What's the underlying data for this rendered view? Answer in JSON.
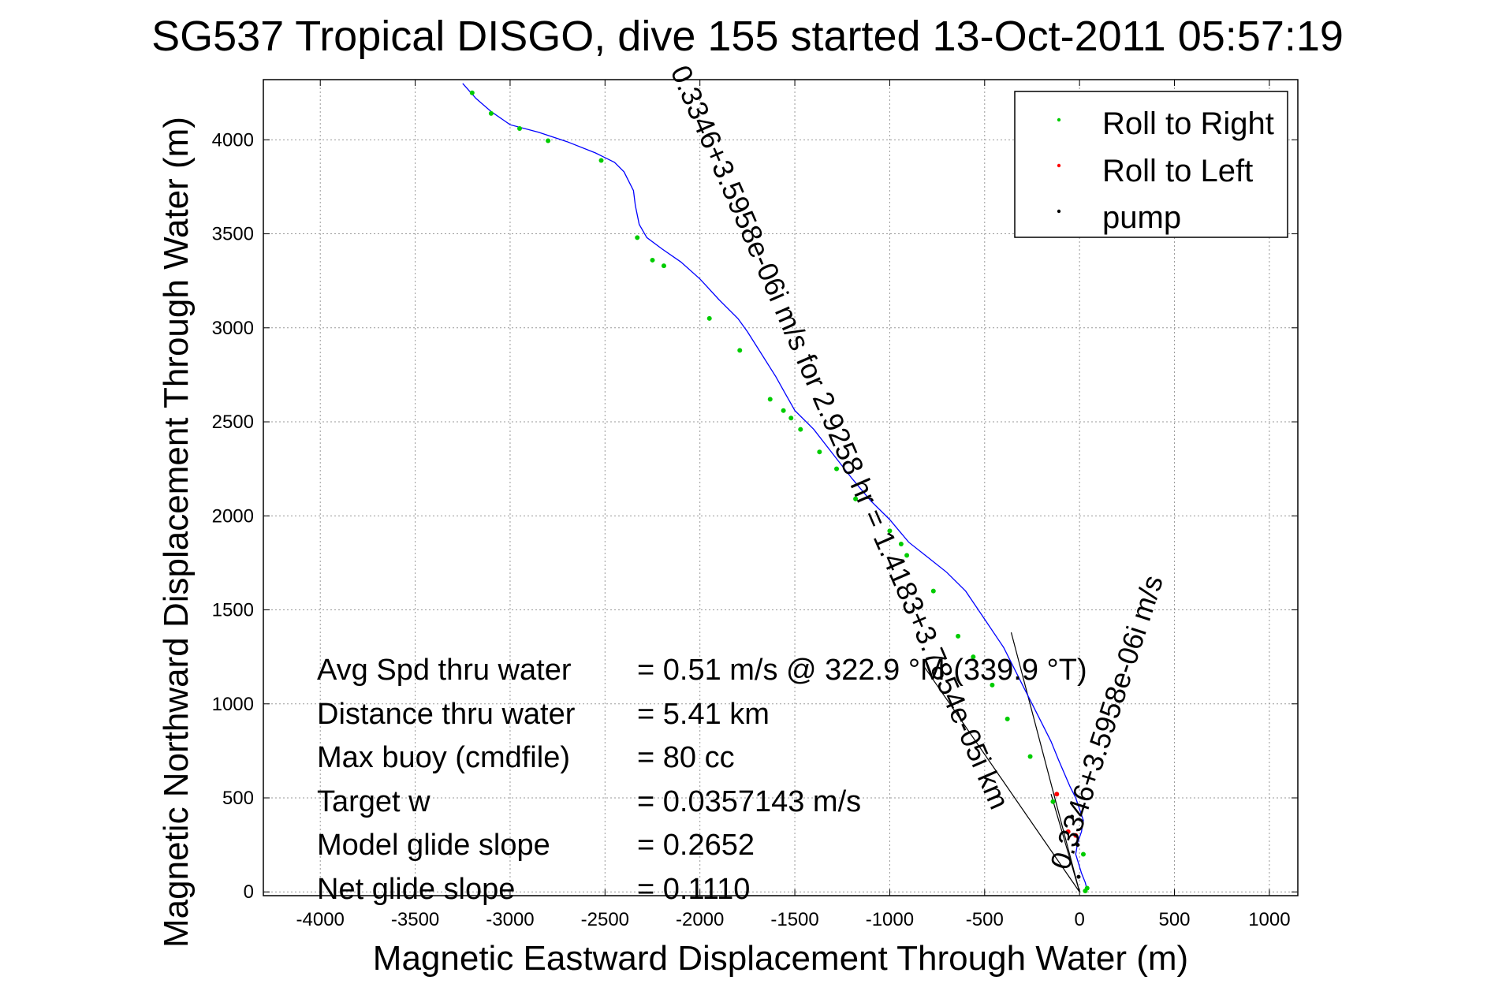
{
  "figure": {
    "title": "SG537 Tropical DISGO, dive 155 started 13-Oct-2011 05:57:19",
    "background": "#ffffff"
  },
  "chart_data": {
    "type": "line",
    "title": "SG537 Tropical DISGO, dive 155 started 13-Oct-2011 05:57:19",
    "xlabel": "Magnetic Eastward Displacement Through Water (m)",
    "ylabel": "Magnetic Northward Displacement Through Water (m)",
    "xlim": [
      -4300,
      1150
    ],
    "ylim": [
      -20,
      4320
    ],
    "x_ticks": [
      -4000,
      -3500,
      -3000,
      -2500,
      -2000,
      -1500,
      -1000,
      -500,
      0,
      500,
      1000
    ],
    "y_ticks": [
      0,
      500,
      1000,
      1500,
      2000,
      2500,
      3000,
      3500,
      4000
    ],
    "grid": true,
    "legend_position": "top-right",
    "legend": [
      {
        "label": "Roll to Right",
        "color": "#00cc00"
      },
      {
        "label": "Roll to Left",
        "color": "#ff0000"
      },
      {
        "label": "pump",
        "color": "#000000"
      }
    ],
    "track": {
      "name": "glider track",
      "color": "#0000ff",
      "x": [
        40,
        30,
        10,
        -5,
        -20,
        -10,
        10,
        20,
        0,
        -20,
        -50,
        -80,
        -110,
        -150,
        -200,
        -250,
        -300,
        -400,
        -500,
        -600,
        -700,
        -800,
        -900,
        -950,
        -1000,
        -1100,
        -1200,
        -1300,
        -1400,
        -1500,
        -1550,
        -1600,
        -1700,
        -1750,
        -1800,
        -1900,
        -2000,
        -2100,
        -2200,
        -2280,
        -2320,
        -2340,
        -2350,
        -2400,
        -2450,
        -2550,
        -2700,
        -2850,
        -3000,
        -3100,
        -3180,
        -3250
      ],
      "y": [
        10,
        50,
        100,
        150,
        200,
        260,
        320,
        380,
        440,
        500,
        560,
        630,
        700,
        800,
        900,
        1000,
        1100,
        1300,
        1450,
        1600,
        1700,
        1780,
        1860,
        1920,
        1980,
        2080,
        2200,
        2330,
        2460,
        2560,
        2650,
        2740,
        2900,
        2980,
        3050,
        3150,
        3260,
        3350,
        3420,
        3480,
        3550,
        3650,
        3730,
        3830,
        3880,
        3930,
        3990,
        4040,
        4080,
        4150,
        4220,
        4300
      ]
    },
    "roll_right_points": {
      "x": [
        -3200,
        -3100,
        -2950,
        -2800,
        -2520,
        -2330,
        -2250,
        -2190,
        -1950,
        -1790,
        -1630,
        -1560,
        -1520,
        -1470,
        -1370,
        -1280,
        -1180,
        -1000,
        -940,
        -910,
        -770,
        -640,
        -560,
        -460,
        -380,
        -260,
        -140,
        20,
        40,
        30
      ],
      "y": [
        4250,
        4140,
        4060,
        3995,
        3890,
        3480,
        3360,
        3330,
        3050,
        2880,
        2620,
        2560,
        2520,
        2460,
        2340,
        2250,
        2090,
        1920,
        1850,
        1790,
        1600,
        1360,
        1250,
        1100,
        920,
        720,
        480,
        200,
        20,
        5
      ]
    },
    "roll_left_points": {
      "x": [
        -120,
        -60,
        -20
      ],
      "y": [
        520,
        320,
        300
      ]
    },
    "pump_points": {
      "x": [
        -40,
        -10,
        -5
      ],
      "y": [
        400,
        250,
        80
      ]
    },
    "current_lines": [
      {
        "x": [
          0,
          -820
        ],
        "y": [
          0,
          1200
        ]
      },
      {
        "x": [
          0,
          -360
        ],
        "y": [
          0,
          1380
        ]
      },
      {
        "x": [
          0,
          -150
        ],
        "y": [
          0,
          520
        ]
      }
    ],
    "annotations": [
      "Avg Spd thru water   =  0.51 m/s @ 322.9 °M (339.9 °T)",
      "Distance thru water   =  5.41 km",
      "Max buoy (cmdfile)   = 80 cc",
      "Target w   = 0.0357143 m/s",
      "Model glide slope   = 0.2652",
      "Net glide slope   = 0.1110",
      "1.4183+3.7854e-05i km",
      "= 1.4183+3.7854e-05i km",
      "0.3346+3.5958e-06i m/s for 2.9258 hr"
    ]
  },
  "stats": [
    {
      "label": "Avg Spd thru water",
      "value": "=  0.51 m/s @ 322.9 °M (339.9 °T)"
    },
    {
      "label": "Distance thru water",
      "value": "=  5.41 km"
    },
    {
      "label": "Max buoy (cmdfile)",
      "value": "= 80 cc"
    },
    {
      "label": "Target w",
      "value": "= 0.0357143 m/s"
    },
    {
      "label": "Model glide slope",
      "value": "= 0.2652"
    },
    {
      "label": "Net glide slope",
      "value": "= 0.1110"
    }
  ],
  "rotated_labels": {
    "upper": "0.3346+3.5958e-06i m/s for 2.9258 hr = 1.4183+3.7854e-05i km",
    "lower": "0.3346+3.5958e-06i m/s"
  }
}
